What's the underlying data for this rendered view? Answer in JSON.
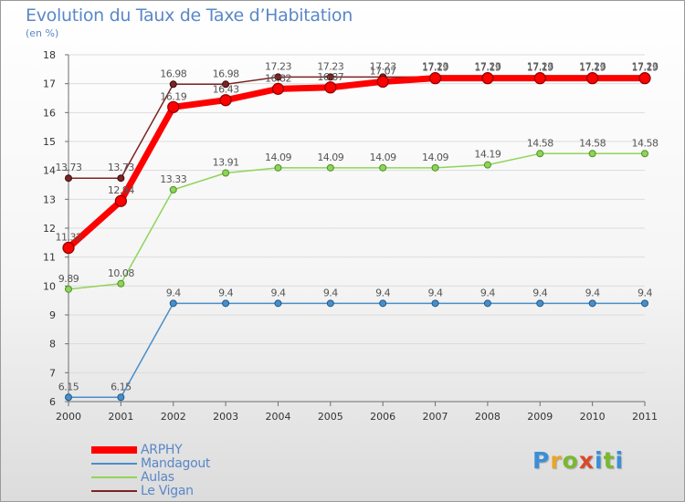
{
  "header": {
    "title": "Evolution du Taux de Taxe d’Habitation",
    "subtitle": "(en %)"
  },
  "logo": {
    "text": "Proxiti",
    "letter_colors": [
      "#3a8fd6",
      "#e8a628",
      "#7ab830",
      "#d84a2a",
      "#3a8fd6",
      "#7ab830",
      "#3a8fd6"
    ]
  },
  "colors": {
    "axis": "#6e6e6e",
    "grid": "#dcdcdc",
    "tick_text": "#333333",
    "value_text": "#555555",
    "title_text": "#5a87c8"
  },
  "chart_data": {
    "type": "line",
    "xlabel": "",
    "ylabel": "",
    "ylim": [
      6,
      18
    ],
    "yticks": [
      6,
      7,
      8,
      9,
      10,
      11,
      12,
      13,
      14,
      15,
      16,
      17,
      18
    ],
    "x": [
      "2000",
      "2001",
      "2002",
      "2003",
      "2004",
      "2005",
      "2006",
      "2007",
      "2008",
      "2009",
      "2010",
      "2011"
    ],
    "grid": "horizontal",
    "legend": "bottom-left",
    "series": [
      {
        "name": "Le Vigan",
        "color": "#7b2424",
        "values": [
          13.73,
          13.73,
          16.98,
          16.98,
          17.23,
          17.23,
          17.23,
          17.23,
          17.23,
          17.23,
          17.23,
          17.23
        ],
        "labels": [
          "13.73",
          "13.73",
          "16.98",
          "16.98",
          "17.23",
          "17.23",
          "17.23",
          "17.23",
          "17.23",
          "17.23",
          "17.23",
          "17.23"
        ]
      },
      {
        "name": "Mandagout",
        "color": "#4a8ec9",
        "values": [
          6.15,
          6.15,
          9.4,
          9.4,
          9.4,
          9.4,
          9.4,
          9.4,
          9.4,
          9.4,
          9.4,
          9.4
        ],
        "labels": [
          "6.15",
          "6.15",
          "9.4",
          "9.4",
          "9.4",
          "9.4",
          "9.4",
          "9.4",
          "9.4",
          "9.4",
          "9.4",
          "9.4"
        ]
      },
      {
        "name": "Aulas",
        "color": "#8fd45a",
        "values": [
          9.89,
          10.08,
          13.33,
          13.91,
          14.09,
          14.09,
          14.09,
          14.09,
          14.19,
          14.58,
          14.58,
          14.58
        ],
        "labels": [
          "9.89",
          "10.08",
          "13.33",
          "13.91",
          "14.09",
          "14.09",
          "14.09",
          "14.09",
          "14.19",
          "14.58",
          "14.58",
          "14.58"
        ]
      },
      {
        "name": "ARPHY",
        "color": "#ff0000",
        "values": [
          11.32,
          12.94,
          16.19,
          16.43,
          16.82,
          16.87,
          17.07,
          17.19,
          17.19,
          17.19,
          17.19,
          17.19
        ],
        "labels": [
          "11.32",
          "12.94",
          "16.19",
          "16.43",
          "16.82",
          "16.87",
          "17.07",
          "17.19",
          "17.19",
          "17.19",
          "17.19",
          "17.19"
        ]
      }
    ],
    "legend_order": [
      "ARPHY",
      "Mandagout",
      "Aulas",
      "Le Vigan"
    ]
  }
}
